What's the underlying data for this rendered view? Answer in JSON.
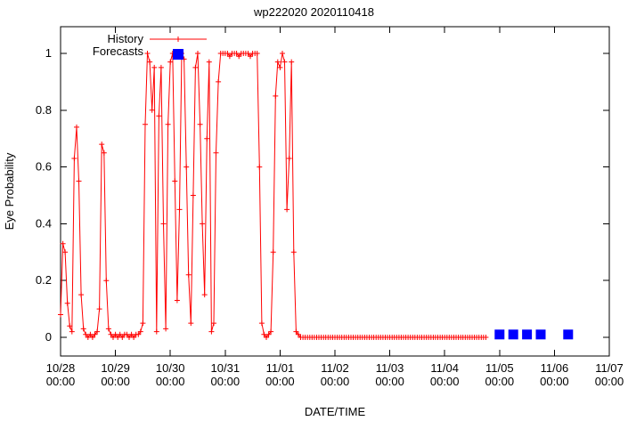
{
  "chart_data": {
    "type": "line",
    "title": "wp222020 2020110418",
    "xlabel": "DATE/TIME",
    "ylabel": "Eye Probability",
    "x_axis": {
      "total_hours": 240,
      "tick_interval_hours": 24,
      "tick_labels": [
        [
          "10/28",
          "00:00"
        ],
        [
          "10/29",
          "00:00"
        ],
        [
          "10/30",
          "00:00"
        ],
        [
          "10/31",
          "00:00"
        ],
        [
          "11/01",
          "00:00"
        ],
        [
          "11/02",
          "00:00"
        ],
        [
          "11/03",
          "00:00"
        ],
        [
          "11/04",
          "00:00"
        ],
        [
          "11/05",
          "00:00"
        ],
        [
          "11/06",
          "00:00"
        ],
        [
          "11/07",
          "00:00"
        ]
      ]
    },
    "y_axis": {
      "ticks": [
        0,
        0.2,
        0.4,
        0.6,
        0.8,
        1
      ],
      "tick_labels": [
        "0",
        "0.2",
        "0.4",
        "0.6",
        "0.8",
        "1"
      ],
      "display_min": -0.066,
      "display_max": 1.094
    },
    "legend": {
      "position": "top-left"
    },
    "series": [
      {
        "name": "History",
        "color": "#ff0000",
        "marker": "plus",
        "style": "linespoints",
        "start_hour": 0,
        "step_hours": 1,
        "values": [
          0.08,
          0.33,
          0.3,
          0.12,
          0.04,
          0.02,
          0.63,
          0.74,
          0.55,
          0.15,
          0.03,
          0.01,
          0.0,
          0.01,
          0.0,
          0.01,
          0.02,
          0.1,
          0.68,
          0.65,
          0.2,
          0.03,
          0.01,
          0.0,
          0.01,
          0.0,
          0.01,
          0.0,
          0.01,
          0.01,
          0.0,
          0.01,
          0.0,
          0.01,
          0.01,
          0.02,
          0.05,
          0.75,
          1.0,
          0.97,
          0.8,
          0.95,
          0.02,
          0.78,
          0.95,
          0.4,
          0.03,
          0.75,
          0.97,
          1.0,
          0.55,
          0.13,
          0.45,
          1.0,
          0.98,
          0.6,
          0.22,
          0.05,
          0.5,
          0.95,
          1.0,
          0.75,
          0.4,
          0.15,
          0.7,
          0.97,
          0.02,
          0.05,
          0.65,
          0.9,
          1.0,
          1.0,
          1.0,
          1.0,
          0.99,
          1.0,
          1.0,
          1.0,
          0.99,
          1.0,
          1.0,
          1.0,
          1.0,
          0.99,
          1.0,
          1.0,
          1.0,
          0.6,
          0.05,
          0.01,
          0.0,
          0.01,
          0.02,
          0.3,
          0.85,
          0.97,
          0.95,
          1.0,
          0.97,
          0.45,
          0.63,
          0.97,
          0.3,
          0.02,
          0.01,
          0.0,
          0.0,
          0.0,
          0.0,
          0.0,
          0.0,
          0.0,
          0.0,
          0.0,
          0.0,
          0.0,
          0.0,
          0.0,
          0.0,
          0.0,
          0.0,
          0.0,
          0.0,
          0.0,
          0.0,
          0.0,
          0.0,
          0.0,
          0.0,
          0.0,
          0.0,
          0.0,
          0.0,
          0.0,
          0.0,
          0.0,
          0.0,
          0.0,
          0.0,
          0.0,
          0.0,
          0.0,
          0.0,
          0.0,
          0.0,
          0.0,
          0.0,
          0.0,
          0.0,
          0.0,
          0.0,
          0.0,
          0.0,
          0.0,
          0.0,
          0.0,
          0.0,
          0.0,
          0.0,
          0.0,
          0.0,
          0.0,
          0.0,
          0.0,
          0.0,
          0.0,
          0.0,
          0.0,
          0.0,
          0.0,
          0.0,
          0.0,
          0.0,
          0.0,
          0.0,
          0.0,
          0.0,
          0.0,
          0.0,
          0.0,
          0.0,
          0.0,
          0.0,
          0.0,
          0.0,
          0.0,
          0.0
        ]
      },
      {
        "name": "Forecasts",
        "color": "#0000ff",
        "marker": "filled-square",
        "style": "points",
        "points": [
          [
            192,
            0.01
          ],
          [
            198,
            0.01
          ],
          [
            204,
            0.01
          ],
          [
            210,
            0.01
          ],
          [
            222,
            0.01
          ]
        ]
      }
    ]
  }
}
